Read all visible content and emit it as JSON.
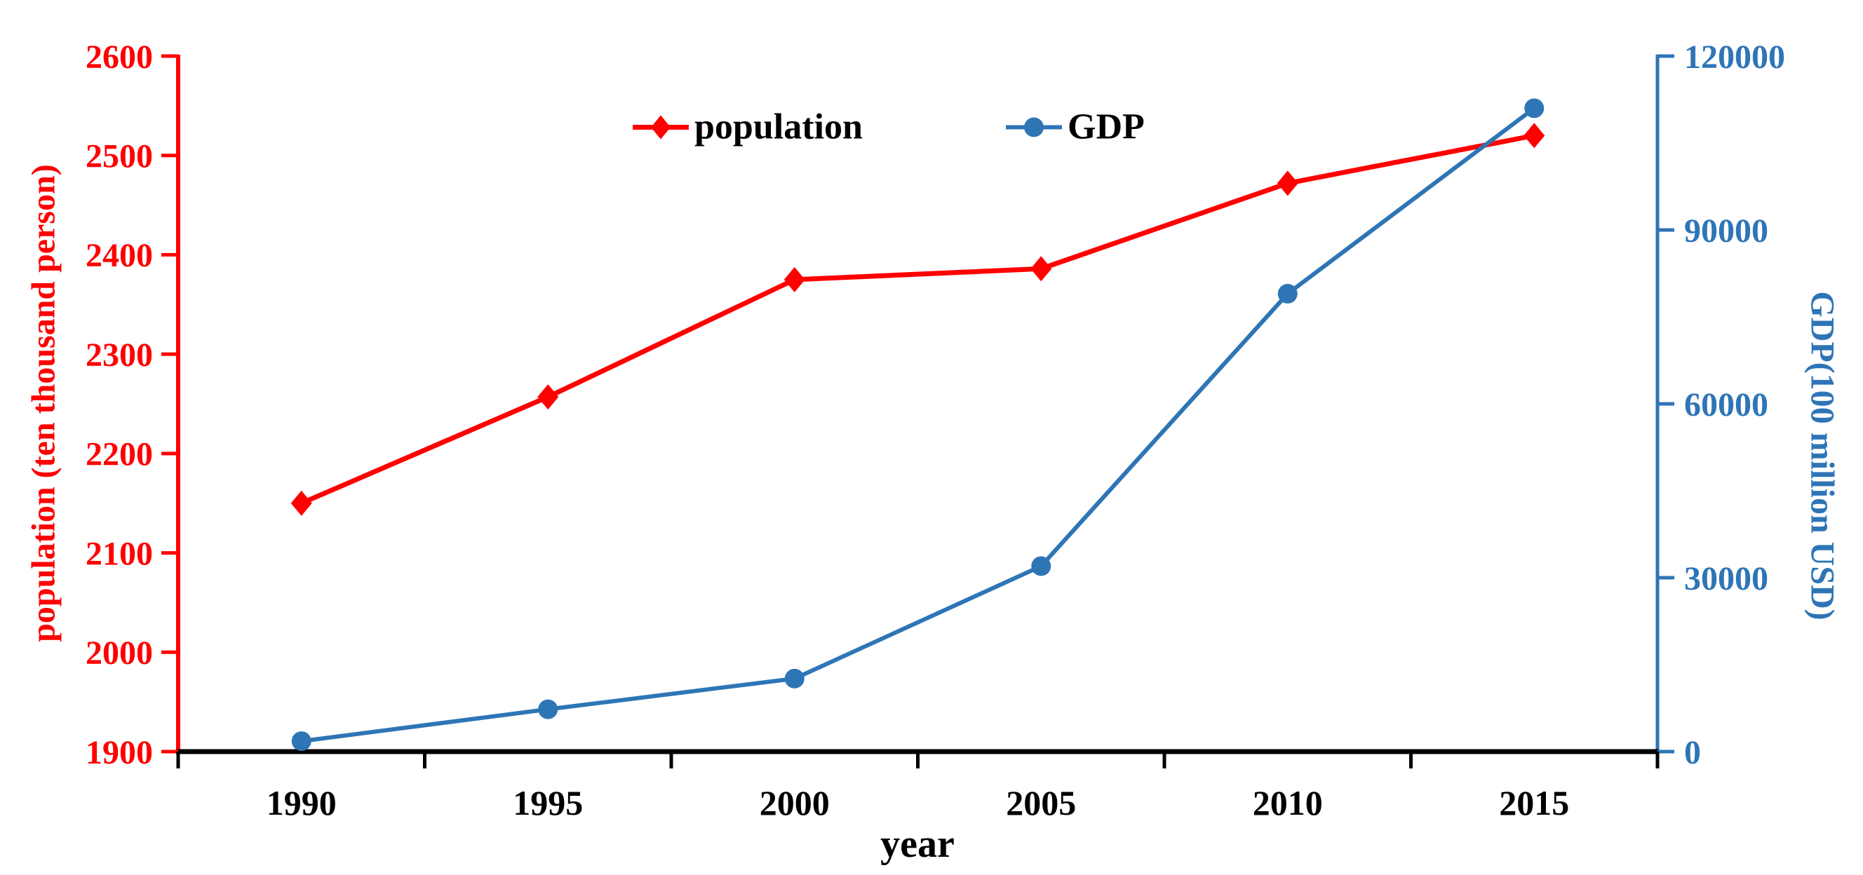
{
  "chart_data": {
    "type": "line",
    "title": "",
    "x_categories": [
      "1990",
      "1995",
      "2000",
      "2005",
      "2010",
      "2015"
    ],
    "xlabel": "year",
    "grid": false,
    "legend_position": "top-center",
    "background_color": "#FFFFFF",
    "text_color": "#000000",
    "left_axis": {
      "label": "population (ten thousand person)",
      "min": 1900,
      "max": 2600,
      "ticks": [
        1900,
        2000,
        2100,
        2200,
        2300,
        2400,
        2500,
        2600
      ],
      "color": "#FF0000"
    },
    "right_axis": {
      "label": "GDP(100 million USD)",
      "min": 0,
      "max": 120000,
      "ticks": [
        0,
        30000,
        60000,
        90000,
        120000
      ],
      "color": "#2E75B6"
    },
    "series": [
      {
        "name": "population",
        "axis": "left",
        "color": "#FF0000",
        "marker": "diamond",
        "values": [
          2150,
          2257,
          2375,
          2386,
          2472,
          2520
        ]
      },
      {
        "name": "GDP",
        "axis": "right",
        "color": "#2E75B6",
        "marker": "circle",
        "values": [
          1800,
          7300,
          12600,
          32000,
          79000,
          111000
        ]
      }
    ]
  }
}
